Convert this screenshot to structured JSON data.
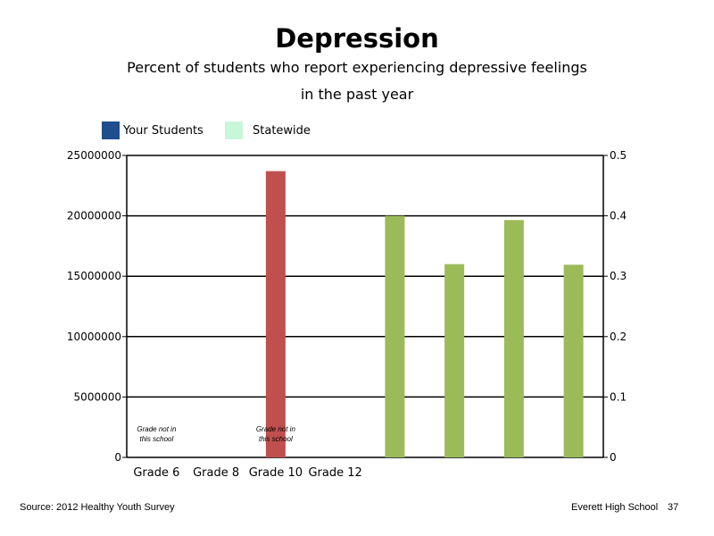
{
  "chart_data": {
    "type": "bar",
    "title": "Depression",
    "subtitle_lines": [
      "Percent of students who report experiencing depressive feelings",
      "in the past year"
    ],
    "legend": [
      {
        "label": "Your Students",
        "color": "#1f4e8c"
      },
      {
        "label": "Statewide",
        "color": "#c6f7d8"
      }
    ],
    "categories": [
      "Grade 6",
      "Grade 8",
      "Grade 10",
      "Grade 12"
    ],
    "left_axis": {
      "ylim": [
        0,
        25000000
      ],
      "ticks": [
        "0",
        "5000000",
        "10000000",
        "15000000",
        "20000000",
        "25000000"
      ]
    },
    "right_axis": {
      "ylim": [
        0,
        0.5
      ],
      "ticks": [
        "0",
        "0.1",
        "0.2",
        "0.3",
        "0.4",
        "0.5"
      ]
    },
    "gridlines": true,
    "series": [
      {
        "axis": "left",
        "color": "#c0504d",
        "points": [
          {
            "slot": 3,
            "value": 23700000
          }
        ]
      },
      {
        "axis": "right",
        "color": "#9bbb59",
        "points": [
          {
            "slot": 5,
            "value": 0.4
          },
          {
            "slot": 6,
            "value": 0.32
          },
          {
            "slot": 7,
            "value": 0.393
          },
          {
            "slot": 8,
            "value": 0.319
          }
        ]
      }
    ],
    "notes": [
      {
        "slot": 1,
        "text": [
          "Grade not in",
          "this school"
        ]
      },
      {
        "slot": 3,
        "text": [
          "Grade not in",
          "this school"
        ]
      }
    ]
  },
  "footer": {
    "source": "Source: 2012 Healthy Youth Survey",
    "school": "Everett High School",
    "page_number": "37"
  }
}
